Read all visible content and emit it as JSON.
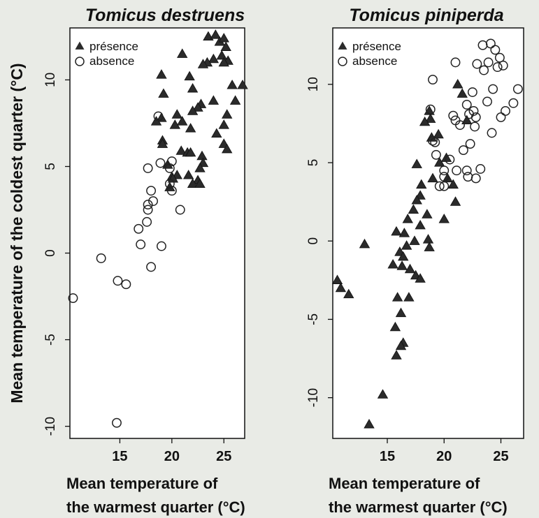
{
  "ylabel": "Mean temperature of the coldest quarter (°C)",
  "chart_data": [
    {
      "type": "scatter",
      "title": "Tomicus destruens",
      "xlabel": [
        "Mean temperature of",
        "the warmest quarter (°C)"
      ],
      "ylabel": "Mean temperature of the coldest quarter (°C)",
      "xlim": [
        10.2,
        27.0
      ],
      "ylim": [
        -10.7,
        13.0
      ],
      "xticks": [
        15,
        20,
        25
      ],
      "yticks": [
        -10,
        -5,
        0,
        5,
        10
      ],
      "legend": {
        "position": "top-left",
        "entries": [
          "présence",
          "absence"
        ]
      },
      "series": [
        {
          "name": "présence",
          "marker": "filled-triangle",
          "points": [
            [
              23.5,
              12.5
            ],
            [
              24.2,
              12.6
            ],
            [
              24.6,
              12.2
            ],
            [
              25.0,
              12.4
            ],
            [
              25.2,
              11.9
            ],
            [
              24.8,
              11.4
            ],
            [
              24.0,
              11.2
            ],
            [
              23.4,
              11.0
            ],
            [
              25.4,
              11.1
            ],
            [
              25.0,
              11.0
            ],
            [
              21.0,
              11.5
            ],
            [
              23.0,
              10.9
            ],
            [
              19.0,
              10.3
            ],
            [
              21.7,
              10.2
            ],
            [
              25.8,
              9.7
            ],
            [
              26.8,
              9.7
            ],
            [
              22.0,
              9.5
            ],
            [
              19.2,
              9.2
            ],
            [
              24.0,
              8.8
            ],
            [
              26.1,
              8.8
            ],
            [
              22.8,
              8.6
            ],
            [
              22.5,
              8.4
            ],
            [
              22.0,
              8.2
            ],
            [
              25.3,
              8.0
            ],
            [
              20.5,
              8.0
            ],
            [
              19.0,
              7.8
            ],
            [
              18.5,
              7.6
            ],
            [
              21.0,
              7.6
            ],
            [
              25.0,
              7.4
            ],
            [
              20.3,
              7.4
            ],
            [
              21.8,
              7.2
            ],
            [
              24.3,
              6.9
            ],
            [
              19.1,
              6.5
            ],
            [
              19.1,
              6.3
            ],
            [
              25.0,
              6.3
            ],
            [
              25.3,
              6.0
            ],
            [
              20.9,
              5.9
            ],
            [
              21.5,
              5.8
            ],
            [
              21.8,
              5.8
            ],
            [
              22.9,
              5.6
            ],
            [
              23.0,
              5.2
            ],
            [
              19.6,
              5.1
            ],
            [
              22.7,
              4.9
            ],
            [
              20.0,
              4.4
            ],
            [
              21.6,
              4.5
            ],
            [
              22.5,
              4.2
            ],
            [
              20.5,
              4.5
            ],
            [
              22.0,
              4.0
            ],
            [
              22.7,
              4.0
            ],
            [
              19.8,
              3.8
            ],
            [
              20.1,
              4.3
            ]
          ]
        },
        {
          "name": "absence",
          "marker": "open-circle",
          "points": [
            [
              18.7,
              7.9
            ],
            [
              20.0,
              5.3
            ],
            [
              18.9,
              5.2
            ],
            [
              17.7,
              4.9
            ],
            [
              19.8,
              4.9
            ],
            [
              19.8,
              4.0
            ],
            [
              18.0,
              3.6
            ],
            [
              20.0,
              3.6
            ],
            [
              17.7,
              2.8
            ],
            [
              17.7,
              2.5
            ],
            [
              18.2,
              3.0
            ],
            [
              20.8,
              2.5
            ],
            [
              16.8,
              1.4
            ],
            [
              17.6,
              1.8
            ],
            [
              17.0,
              0.5
            ],
            [
              19.0,
              0.4
            ],
            [
              13.2,
              -0.3
            ],
            [
              18.0,
              -0.8
            ],
            [
              14.8,
              -1.6
            ],
            [
              15.6,
              -1.8
            ],
            [
              10.5,
              -2.6
            ],
            [
              14.7,
              -9.8
            ]
          ]
        }
      ]
    },
    {
      "type": "scatter",
      "title": "Tomicus piniperda",
      "xlabel": [
        "Mean temperature of",
        "the warmest quarter (°C)"
      ],
      "ylabel": "",
      "xlim": [
        10.2,
        27.0
      ],
      "ylim": [
        -12.6,
        13.6
      ],
      "xticks": [
        15,
        20,
        25
      ],
      "yticks": [
        -10,
        -5,
        0,
        5,
        10
      ],
      "legend": {
        "position": "top-left",
        "entries": [
          "présence",
          "absence"
        ]
      },
      "series": [
        {
          "name": "présence",
          "marker": "filled-triangle",
          "points": [
            [
              21.2,
              10.0
            ],
            [
              21.6,
              9.4
            ],
            [
              18.7,
              8.3
            ],
            [
              18.8,
              7.8
            ],
            [
              22.0,
              7.7
            ],
            [
              18.3,
              7.6
            ],
            [
              19.5,
              6.8
            ],
            [
              18.9,
              6.6
            ],
            [
              20.2,
              5.3
            ],
            [
              19.6,
              5.0
            ],
            [
              17.6,
              4.9
            ],
            [
              20.3,
              4.0
            ],
            [
              19.0,
              4.0
            ],
            [
              20.8,
              3.6
            ],
            [
              18.0,
              3.6
            ],
            [
              17.9,
              2.9
            ],
            [
              17.6,
              2.6
            ],
            [
              21.0,
              2.5
            ],
            [
              17.3,
              2.0
            ],
            [
              18.5,
              1.7
            ],
            [
              16.8,
              1.4
            ],
            [
              20.0,
              1.4
            ],
            [
              17.9,
              1.0
            ],
            [
              15.8,
              0.6
            ],
            [
              16.5,
              0.5
            ],
            [
              18.6,
              0.1
            ],
            [
              17.4,
              0.0
            ],
            [
              18.7,
              -0.4
            ],
            [
              13.0,
              -0.2
            ],
            [
              16.7,
              -0.3
            ],
            [
              16.1,
              -0.7
            ],
            [
              16.4,
              -1.0
            ],
            [
              15.5,
              -1.5
            ],
            [
              16.3,
              -1.6
            ],
            [
              17.0,
              -1.8
            ],
            [
              17.5,
              -2.2
            ],
            [
              17.9,
              -2.4
            ],
            [
              10.6,
              -2.5
            ],
            [
              10.9,
              -3.0
            ],
            [
              11.6,
              -3.4
            ],
            [
              15.9,
              -3.6
            ],
            [
              16.9,
              -3.6
            ],
            [
              16.2,
              -4.6
            ],
            [
              15.7,
              -5.5
            ],
            [
              16.4,
              -6.5
            ],
            [
              16.2,
              -6.7
            ],
            [
              15.8,
              -7.3
            ],
            [
              14.6,
              -9.8
            ],
            [
              13.4,
              -11.7
            ]
          ]
        },
        {
          "name": "absence",
          "marker": "open-circle",
          "points": [
            [
              23.4,
              12.5
            ],
            [
              24.1,
              12.6
            ],
            [
              24.5,
              12.2
            ],
            [
              24.9,
              11.7
            ],
            [
              23.9,
              11.4
            ],
            [
              22.9,
              11.3
            ],
            [
              25.2,
              11.2
            ],
            [
              24.7,
              11.1
            ],
            [
              23.5,
              10.9
            ],
            [
              21.0,
              11.4
            ],
            [
              19.0,
              10.3
            ],
            [
              26.5,
              9.7
            ],
            [
              24.3,
              9.7
            ],
            [
              23.8,
              8.9
            ],
            [
              22.5,
              9.5
            ],
            [
              26.1,
              8.8
            ],
            [
              22.0,
              8.7
            ],
            [
              22.6,
              8.3
            ],
            [
              25.4,
              8.3
            ],
            [
              22.2,
              8.1
            ],
            [
              20.8,
              8.0
            ],
            [
              18.8,
              8.4
            ],
            [
              22.8,
              7.9
            ],
            [
              25.0,
              7.9
            ],
            [
              21.0,
              7.7
            ],
            [
              21.4,
              7.4
            ],
            [
              22.7,
              7.3
            ],
            [
              24.2,
              6.9
            ],
            [
              19.2,
              6.3
            ],
            [
              22.3,
              6.2
            ],
            [
              19.0,
              6.4
            ],
            [
              19.3,
              5.5
            ],
            [
              21.7,
              5.8
            ],
            [
              20.5,
              5.2
            ],
            [
              20.0,
              4.5
            ],
            [
              21.1,
              4.5
            ],
            [
              22.0,
              4.5
            ],
            [
              23.2,
              4.6
            ],
            [
              20.0,
              4.1
            ],
            [
              22.1,
              4.1
            ],
            [
              22.8,
              4.0
            ],
            [
              20.0,
              3.5
            ],
            [
              19.6,
              3.5
            ]
          ]
        }
      ]
    }
  ]
}
